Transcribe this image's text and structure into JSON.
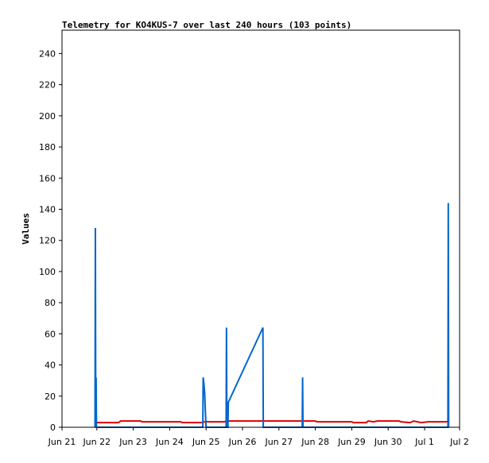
{
  "chart_data": {
    "type": "line",
    "title": "Telemetry for KO4KUS-7 over last 240 hours (103 points)",
    "y_label": "Values",
    "xlim": [
      0.044,
      10.96
    ],
    "xticks": [
      {
        "value": 0.044,
        "label": "Jun 21"
      },
      {
        "value": 1,
        "label": "Jun 22"
      },
      {
        "value": 2,
        "label": "Jun 23"
      },
      {
        "value": 3,
        "label": "Jun 24"
      },
      {
        "value": 4,
        "label": "Jun 25"
      },
      {
        "value": 5,
        "label": "Jun 26"
      },
      {
        "value": 6,
        "label": "Jun 27"
      },
      {
        "value": 7,
        "label": "Jun 28"
      },
      {
        "value": 8,
        "label": "Jun 29"
      },
      {
        "value": 9,
        "label": "Jun 30"
      },
      {
        "value": 10,
        "label": "Jul 1"
      },
      {
        "value": 10.96,
        "label": "Jul 2"
      }
    ],
    "ylim": [
      0,
      255
    ],
    "yticks": [
      0,
      20,
      40,
      60,
      80,
      100,
      120,
      140,
      160,
      180,
      200,
      220,
      240
    ],
    "series": [
      {
        "color": "#dd0000",
        "x": [
          0.99,
          1.6,
          1.65,
          2.2,
          2.25,
          3.3,
          3.35,
          3.9,
          3.95,
          4.5,
          4.55,
          7.0,
          7.05,
          8.0,
          8.05,
          8.4,
          8.45,
          8.6,
          8.7,
          9.3,
          9.35,
          9.6,
          9.7,
          9.9,
          10.1,
          10.6,
          10.65,
          10.68
        ],
        "values": [
          3,
          3,
          4,
          4,
          3.5,
          3.5,
          3,
          3,
          3.5,
          3.5,
          4,
          4,
          3.5,
          3.5,
          3,
          3,
          4,
          3.5,
          4,
          4,
          3.5,
          3,
          4,
          3,
          3.5,
          3.5,
          4,
          4
        ]
      },
      {
        "color": "#0066cc",
        "x": [
          0.95,
          0.96,
          0.97,
          0.98,
          0.99,
          3.91,
          3.92,
          3.94,
          3.96,
          3.98,
          4.0,
          4.55,
          4.56,
          4.57,
          4.6,
          4.61,
          5.56,
          5.57,
          6.64,
          6.65,
          6.66,
          10.64,
          10.65,
          10.66
        ],
        "values": [
          0,
          128,
          0,
          32,
          0,
          0,
          32,
          28,
          22,
          10,
          0,
          0,
          64,
          0,
          0,
          16,
          64,
          0,
          0,
          32,
          0,
          0,
          144,
          0
        ]
      }
    ]
  }
}
